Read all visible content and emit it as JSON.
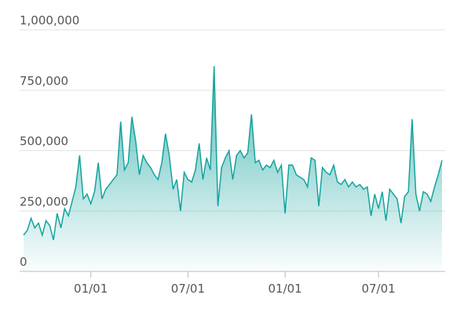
{
  "chart_data": {
    "type": "area",
    "categories": [
      null,
      null,
      null,
      null,
      null,
      null,
      null,
      null,
      null,
      null,
      null,
      null,
      null,
      null,
      null,
      null,
      null,
      null,
      "01/01",
      null,
      null,
      null,
      null,
      null,
      null,
      null,
      null,
      null,
      null,
      null,
      null,
      null,
      null,
      null,
      null,
      null,
      null,
      null,
      null,
      null,
      null,
      null,
      null,
      null,
      "07/01",
      null,
      null,
      null,
      null,
      null,
      null,
      null,
      null,
      null,
      null,
      null,
      null,
      null,
      null,
      null,
      null,
      null,
      null,
      null,
      null,
      null,
      null,
      null,
      null,
      null,
      "01/01",
      null,
      null,
      null,
      null,
      null,
      null,
      null,
      null,
      null,
      null,
      null,
      null,
      null,
      null,
      null,
      null,
      null,
      null,
      null,
      null,
      null,
      null,
      null,
      null,
      "07/01",
      null,
      null,
      null,
      null,
      null,
      null,
      null,
      null,
      null,
      null,
      null,
      null,
      null,
      null,
      null,
      null,
      null
    ],
    "values": [
      150000,
      170000,
      220000,
      180000,
      200000,
      150000,
      210000,
      190000,
      130000,
      240000,
      180000,
      260000,
      230000,
      290000,
      350000,
      480000,
      300000,
      320000,
      280000,
      330000,
      450000,
      300000,
      340000,
      360000,
      380000,
      400000,
      620000,
      420000,
      450000,
      640000,
      540000,
      400000,
      480000,
      450000,
      430000,
      400000,
      380000,
      450000,
      570000,
      480000,
      340000,
      380000,
      250000,
      410000,
      380000,
      370000,
      420000,
      530000,
      380000,
      470000,
      420000,
      850000,
      270000,
      430000,
      470000,
      500000,
      380000,
      480000,
      500000,
      470000,
      490000,
      650000,
      450000,
      460000,
      420000,
      440000,
      430000,
      460000,
      410000,
      440000,
      240000,
      440000,
      440000,
      400000,
      390000,
      380000,
      350000,
      470000,
      460000,
      270000,
      430000,
      410000,
      400000,
      440000,
      370000,
      360000,
      380000,
      350000,
      370000,
      350000,
      360000,
      340000,
      350000,
      230000,
      320000,
      260000,
      330000,
      210000,
      340000,
      320000,
      300000,
      200000,
      310000,
      330000,
      630000,
      320000,
      250000,
      330000,
      320000,
      290000,
      350000,
      400000,
      460000
    ],
    "color": "#14a39e",
    "ylim": [
      0,
      1000000
    ],
    "yticks": [
      0,
      {
        "value": 250000,
        "label": "250,000"
      },
      {
        "value": 500000,
        "label": "500,000"
      },
      {
        "value": 750000,
        "label": "750,000"
      },
      {
        "value": 1000000,
        "label": "1,000,000"
      }
    ],
    "grid": true
  }
}
